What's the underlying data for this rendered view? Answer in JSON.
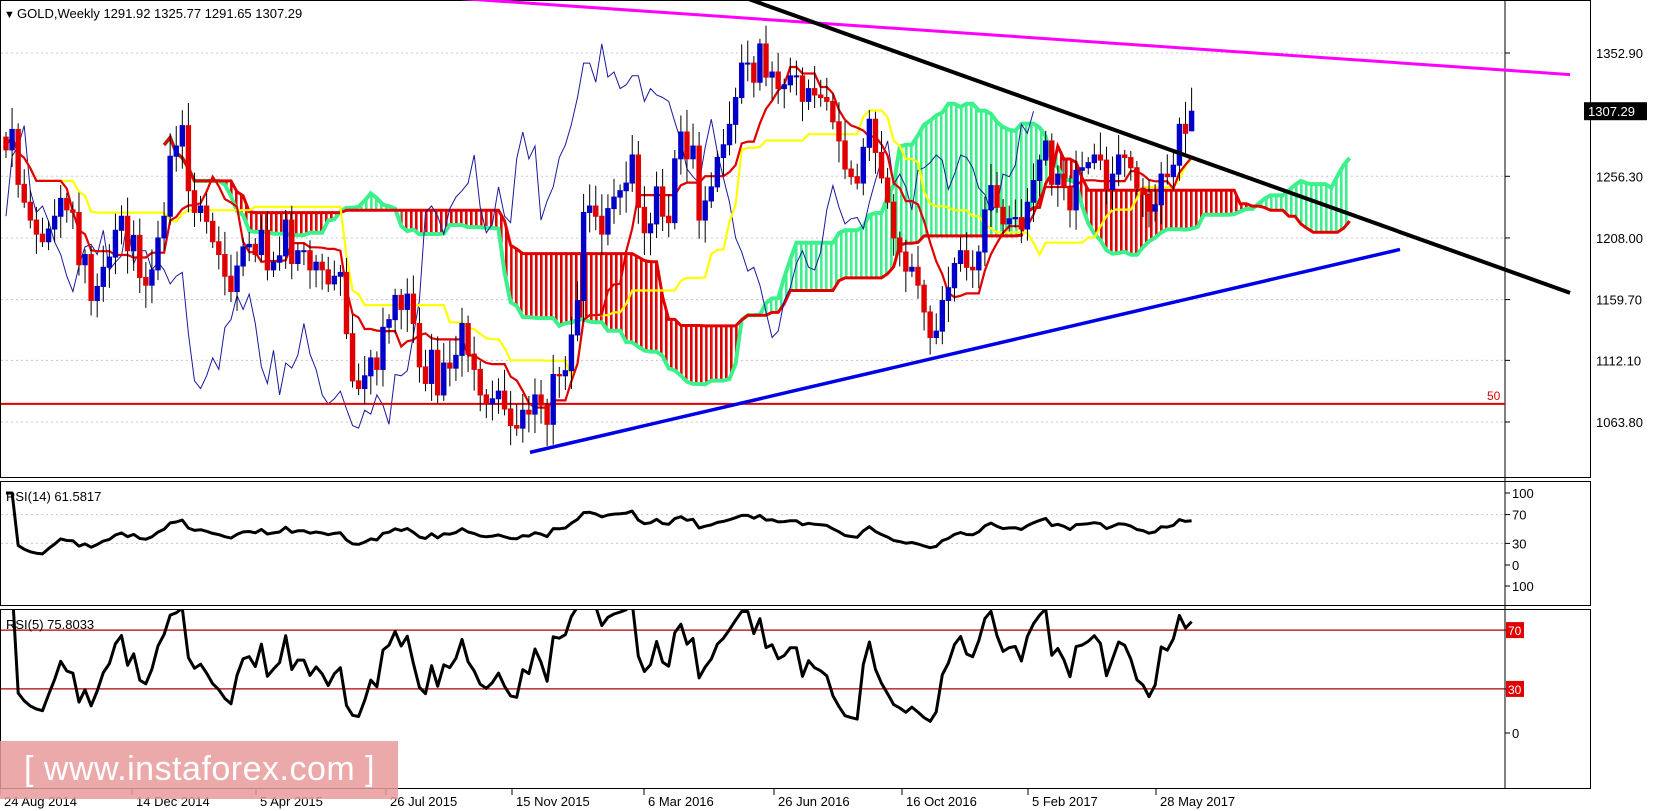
{
  "header": {
    "symbol": "GOLD",
    "timeframe": "Weekly",
    "ohlc": "1291.92 1325.77 1291.65 1307.29",
    "title": "GOLD,Weekly  1291.92 1325.77 1291.65 1307.29"
  },
  "watermark": "[ www.instaforex.com ]",
  "colors": {
    "bull_candle": "#0000c8",
    "bear_candle": "#e00000",
    "tenkan": "#e00000",
    "kijun": "#ffff00",
    "chikou": "#1a1a9a",
    "cloud_bull": "#3cf08c",
    "cloud_bear": "#e00000",
    "trend_magenta": "#ff00ff",
    "trend_black": "#000000",
    "trend_blue": "#0000e6",
    "level_red": "#e00000",
    "rsi_line": "#000000"
  },
  "chart_data": [
    {
      "type": "candlestick",
      "title": "GOLD,Weekly 1291.92 1325.77 1291.65 1307.29",
      "ylim": [
        1030,
        1400
      ],
      "ticks": [
        "1352.90",
        "1307.29",
        "1256.30",
        "1208.00",
        "1159.70",
        "1112.10",
        "1063.80"
      ],
      "current_price": "1307.29",
      "x_labels": [
        "24 Aug 2014",
        "14 Dec 2014",
        "5 Apr 2015",
        "26 Jul 2015",
        "15 Nov 2015",
        "6 Mar 2016",
        "26 Jun 2016",
        "16 Oct 2016",
        "5 Feb 2017",
        "28 May 2017"
      ],
      "horizontal_level": {
        "value": 1078,
        "label": "50"
      },
      "close": [
        1277,
        1293,
        1250,
        1236,
        1222,
        1211,
        1205,
        1215,
        1225,
        1239,
        1230,
        1228,
        1187,
        1195,
        1159,
        1170,
        1185,
        1193,
        1214,
        1225,
        1198,
        1210,
        1177,
        1171,
        1183,
        1208,
        1225,
        1272,
        1280,
        1296,
        1245,
        1228,
        1233,
        1221,
        1205,
        1195,
        1178,
        1166,
        1186,
        1201,
        1203,
        1195,
        1214,
        1183,
        1189,
        1194,
        1222,
        1188,
        1198,
        1198,
        1183,
        1189,
        1183,
        1172,
        1178,
        1181,
        1133,
        1096,
        1090,
        1100,
        1114,
        1105,
        1138,
        1144,
        1163,
        1152,
        1164,
        1141,
        1107,
        1094,
        1120,
        1085,
        1110,
        1106,
        1116,
        1141,
        1117,
        1105,
        1085,
        1078,
        1082,
        1088,
        1074,
        1061,
        1059,
        1073,
        1070,
        1085,
        1077,
        1062,
        1101,
        1100,
        1104,
        1132,
        1159,
        1228,
        1233,
        1225,
        1211,
        1231,
        1240,
        1245,
        1251,
        1273,
        1232,
        1212,
        1219,
        1248,
        1225,
        1220,
        1270,
        1291,
        1270,
        1280,
        1222,
        1237,
        1248,
        1271,
        1281,
        1297,
        1318,
        1345,
        1345,
        1330,
        1360,
        1334,
        1338,
        1325,
        1328,
        1335,
        1335,
        1315,
        1325,
        1320,
        1318,
        1315,
        1299,
        1284,
        1262,
        1256,
        1251,
        1279,
        1301,
        1275,
        1255,
        1236,
        1208,
        1197,
        1182,
        1185,
        1171,
        1150,
        1130,
        1135,
        1159,
        1169,
        1188,
        1198,
        1185,
        1183,
        1197,
        1230,
        1249,
        1232,
        1219,
        1223,
        1224,
        1215,
        1236,
        1253,
        1269,
        1284,
        1250,
        1258,
        1248,
        1230,
        1261,
        1263,
        1267,
        1273,
        1269,
        1246,
        1258,
        1273,
        1271,
        1263,
        1247,
        1242,
        1229,
        1234,
        1258,
        1256,
        1265,
        1297,
        1290,
        1307
      ],
      "rsi_14": {
        "label": "RSI(14) 61.5817",
        "levels": [
          100,
          70,
          30,
          0
        ],
        "last": 61.58
      },
      "rsi_5": {
        "label": "RSI(5) 75.8033",
        "levels": [
          100,
          70,
          30,
          0
        ],
        "marked_levels": [
          70,
          30
        ],
        "last": 75.8
      }
    }
  ]
}
